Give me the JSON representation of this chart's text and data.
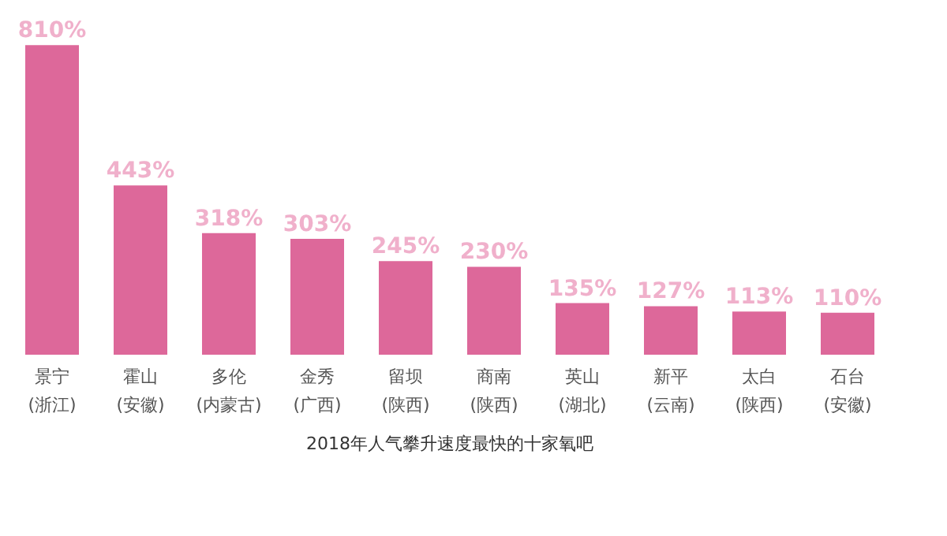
{
  "chart_data": {
    "type": "bar",
    "title": "2018年人气攀升速度最快的十家氧吧",
    "categories": [
      "景宁\n(浙江)",
      "霍山\n(安徽)",
      "多伦\n(内蒙古)",
      "金秀\n(广西)",
      "留坝\n(陕西)",
      "商南\n(陕西)",
      "英山\n(湖北)",
      "新平\n(云南)",
      "太白\n(陕西)",
      "石台\n(安徽)"
    ],
    "values": [
      810,
      443,
      318,
      303,
      245,
      230,
      135,
      127,
      113,
      110
    ],
    "value_labels": [
      "810%",
      "443%",
      "318%",
      "303%",
      "245%",
      "230%",
      "135%",
      "127%",
      "113%",
      "110%"
    ],
    "color": "#d9588f",
    "tick_labels": "x"
  }
}
